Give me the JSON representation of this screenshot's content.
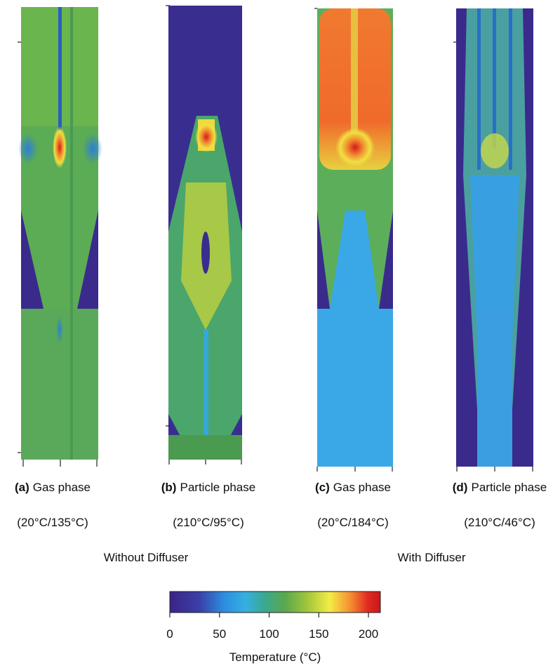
{
  "panels": [
    {
      "label": "(a)",
      "title": "Gas phase",
      "range": "(20°C/135°C)"
    },
    {
      "label": "(b)",
      "title": "Particle phase",
      "range": "(210°C/95°C)"
    },
    {
      "label": "(c)",
      "title": "Gas phase",
      "range": "(20°C/184°C)"
    },
    {
      "label": "(d)",
      "title": "Particle phase",
      "range": "(210°C/46°C)"
    }
  ],
  "groups": [
    "Without Diffuser",
    "With Diffuser"
  ],
  "colorbar": {
    "label": "Temperature (°C)",
    "lim": [
      0,
      212
    ],
    "ticks": [
      0,
      50,
      100,
      150,
      200
    ]
  }
}
